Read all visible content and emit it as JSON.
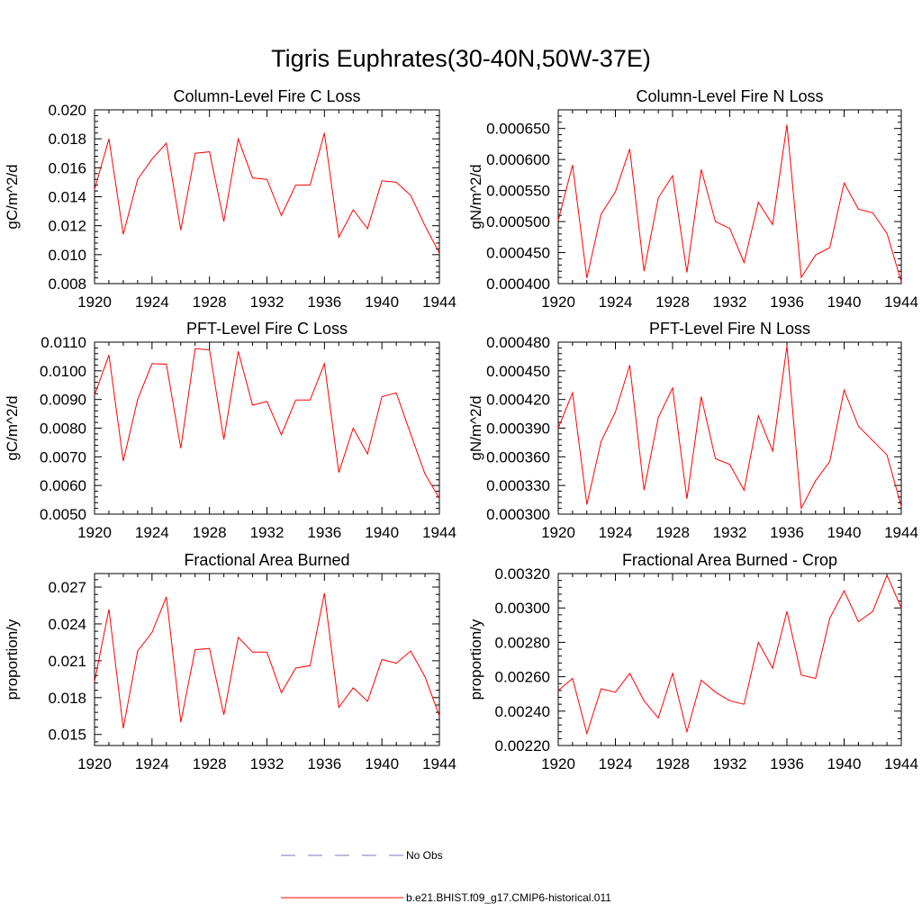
{
  "figure": {
    "title": "Tigris Euphrates(30-40N,50W-37E)",
    "series_color": "#ff0000",
    "obs_color": "#7777bb"
  },
  "legend": {
    "items": [
      {
        "label": "No Obs",
        "style": "dashed",
        "color": "#7777bb"
      },
      {
        "label": "b.e21.BHIST.f09_g17.CMIP6-historical.011",
        "style": "solid",
        "color": "#ff0000"
      }
    ]
  },
  "chart_data": [
    {
      "type": "line",
      "title": "Column-Level Fire C Loss",
      "ylabel": "gC/m^2/d",
      "xlim": [
        1920,
        1944
      ],
      "ylim": [
        0.008,
        0.02
      ],
      "xticks": [
        "1920",
        "1924",
        "1928",
        "1932",
        "1936",
        "1940",
        "1944"
      ],
      "yticks": [
        "0.008",
        "0.010",
        "0.012",
        "0.014",
        "0.016",
        "0.018",
        "0.020"
      ],
      "x": [
        1920,
        1921,
        1922,
        1923,
        1924,
        1925,
        1926,
        1927,
        1928,
        1929,
        1930,
        1931,
        1932,
        1933,
        1934,
        1935,
        1936,
        1937,
        1938,
        1939,
        1940,
        1941,
        1942,
        1943,
        1944
      ],
      "values": [
        0.0145,
        0.018,
        0.0114,
        0.0152,
        0.0166,
        0.0177,
        0.0117,
        0.017,
        0.0171,
        0.0123,
        0.018,
        0.0153,
        0.0152,
        0.0127,
        0.0148,
        0.0148,
        0.0184,
        0.0112,
        0.0131,
        0.0118,
        0.0151,
        0.015,
        0.0141,
        0.012,
        0.0101
      ]
    },
    {
      "type": "line",
      "title": "Column-Level Fire N Loss",
      "ylabel": "gN/m^2/d",
      "xlim": [
        1920,
        1944
      ],
      "ylim": [
        0.0004,
        0.00068
      ],
      "xticks": [
        "1920",
        "1924",
        "1928",
        "1932",
        "1936",
        "1940",
        "1944"
      ],
      "yticks": [
        "0.000400",
        "0.000450",
        "0.000500",
        "0.000550",
        "0.000600",
        "0.000650"
      ],
      "x": [
        1920,
        1921,
        1922,
        1923,
        1924,
        1925,
        1926,
        1927,
        1928,
        1929,
        1930,
        1931,
        1932,
        1933,
        1934,
        1935,
        1936,
        1937,
        1938,
        1939,
        1940,
        1941,
        1942,
        1943,
        1944
      ],
      "values": [
        0.000502,
        0.000591,
        0.000409,
        0.000512,
        0.000548,
        0.000617,
        0.00042,
        0.000538,
        0.000574,
        0.000418,
        0.000584,
        0.0005,
        0.000489,
        0.000434,
        0.000531,
        0.000495,
        0.000656,
        0.00041,
        0.000446,
        0.000458,
        0.000562,
        0.00052,
        0.000514,
        0.000481,
        0.000403
      ]
    },
    {
      "type": "line",
      "title": "PFT-Level Fire C Loss",
      "ylabel": "gC/m^2/d",
      "xlim": [
        1920,
        1944
      ],
      "ylim": [
        0.005,
        0.011
      ],
      "xticks": [
        "1920",
        "1924",
        "1928",
        "1932",
        "1936",
        "1940",
        "1944"
      ],
      "yticks": [
        "0.0050",
        "0.0060",
        "0.0070",
        "0.0080",
        "0.0090",
        "0.0100",
        "0.0110"
      ],
      "x": [
        1920,
        1921,
        1922,
        1923,
        1924,
        1925,
        1926,
        1927,
        1928,
        1929,
        1930,
        1931,
        1932,
        1933,
        1934,
        1935,
        1936,
        1937,
        1938,
        1939,
        1940,
        1941,
        1942,
        1943,
        1944
      ],
      "values": [
        0.00915,
        0.01055,
        0.00685,
        0.009,
        0.01025,
        0.01023,
        0.0073,
        0.01077,
        0.01073,
        0.0076,
        0.01068,
        0.0088,
        0.00893,
        0.00777,
        0.00898,
        0.00898,
        0.01025,
        0.00645,
        0.008,
        0.0071,
        0.0091,
        0.00923,
        0.0078,
        0.0064,
        0.00555
      ]
    },
    {
      "type": "line",
      "title": "PFT-Level Fire N Loss",
      "ylabel": "gN/m^2/d",
      "xlim": [
        1920,
        1944
      ],
      "ylim": [
        0.0003,
        0.00048
      ],
      "xticks": [
        "1920",
        "1924",
        "1928",
        "1932",
        "1936",
        "1940",
        "1944"
      ],
      "yticks": [
        "0.000300",
        "0.000330",
        "0.000360",
        "0.000390",
        "0.000420",
        "0.000450",
        "0.000480"
      ],
      "x": [
        1920,
        1921,
        1922,
        1923,
        1924,
        1925,
        1926,
        1927,
        1928,
        1929,
        1930,
        1931,
        1932,
        1933,
        1934,
        1935,
        1936,
        1937,
        1938,
        1939,
        1940,
        1941,
        1942,
        1943,
        1944
      ],
      "values": [
        0.00039,
        0.000427,
        0.00031,
        0.000376,
        0.000407,
        0.000456,
        0.000325,
        0.000401,
        0.000432,
        0.000316,
        0.000423,
        0.000358,
        0.000352,
        0.000325,
        0.000403,
        0.000366,
        0.000476,
        0.000306,
        0.000335,
        0.000355,
        0.00043,
        0.000392,
        0.000377,
        0.000362,
        0.000308
      ]
    },
    {
      "type": "line",
      "title": "Fractional Area Burned",
      "ylabel": "proportion/y",
      "xlim": [
        1920,
        1944
      ],
      "ylim": [
        0.0141,
        0.0281
      ],
      "xticks": [
        "1920",
        "1924",
        "1928",
        "1932",
        "1936",
        "1940",
        "1944"
      ],
      "yticks": [
        "0.015",
        "0.018",
        "0.021",
        "0.024",
        "0.027"
      ],
      "x": [
        1920,
        1921,
        1922,
        1923,
        1924,
        1925,
        1926,
        1927,
        1928,
        1929,
        1930,
        1931,
        1932,
        1933,
        1934,
        1935,
        1936,
        1937,
        1938,
        1939,
        1940,
        1941,
        1942,
        1943,
        1944
      ],
      "values": [
        0.0193,
        0.0252,
        0.0155,
        0.0218,
        0.0233,
        0.0262,
        0.016,
        0.0219,
        0.022,
        0.0166,
        0.0229,
        0.0217,
        0.0217,
        0.0184,
        0.0204,
        0.0206,
        0.0265,
        0.0172,
        0.0188,
        0.0177,
        0.0211,
        0.0208,
        0.0218,
        0.0197,
        0.0165
      ]
    },
    {
      "type": "line",
      "title": "Fractional Area Burned - Crop",
      "ylabel": "proportion/y",
      "xlim": [
        1920,
        1944
      ],
      "ylim": [
        0.0022,
        0.0032
      ],
      "xticks": [
        "1920",
        "1924",
        "1928",
        "1932",
        "1936",
        "1940",
        "1944"
      ],
      "yticks": [
        "0.00220",
        "0.00240",
        "0.00260",
        "0.00280",
        "0.00300",
        "0.00320"
      ],
      "x": [
        1920,
        1921,
        1922,
        1923,
        1924,
        1925,
        1926,
        1927,
        1928,
        1929,
        1930,
        1931,
        1932,
        1933,
        1934,
        1935,
        1936,
        1937,
        1938,
        1939,
        1940,
        1941,
        1942,
        1943,
        1944
      ],
      "values": [
        0.00252,
        0.00259,
        0.00227,
        0.00253,
        0.00251,
        0.00262,
        0.00246,
        0.00236,
        0.00262,
        0.00228,
        0.00258,
        0.00251,
        0.00246,
        0.00244,
        0.0028,
        0.00265,
        0.00298,
        0.00261,
        0.00259,
        0.00294,
        0.0031,
        0.00292,
        0.00298,
        0.00319,
        0.003
      ]
    }
  ]
}
